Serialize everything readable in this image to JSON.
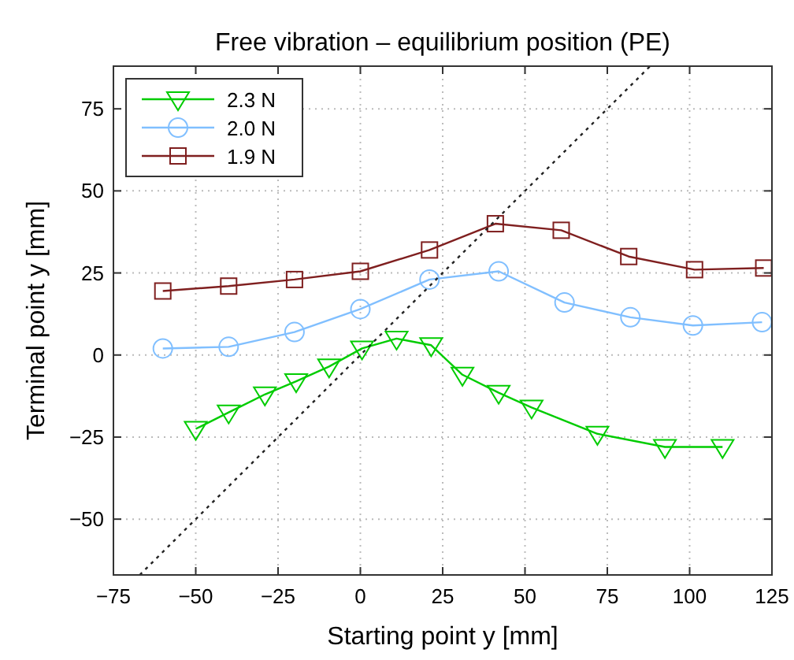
{
  "chart_data": {
    "type": "line",
    "title": "Free vibration – equilibrium position (PE)",
    "xlabel": "Starting point y [mm]",
    "ylabel": "Terminal point y [mm]",
    "xlim": [
      -75,
      125
    ],
    "ylim": [
      -67,
      88
    ],
    "xticks": [
      -75,
      -50,
      -25,
      0,
      25,
      50,
      75,
      100,
      125
    ],
    "yticks": [
      -50,
      -25,
      0,
      25,
      50,
      75
    ],
    "grid": true,
    "legend": "top left",
    "series": [
      {
        "name": "2.3 N",
        "color": "#00cc00",
        "marker": "triangle",
        "x": [
          -50,
          -40,
          -29,
          -19.5,
          -9.5,
          0.5,
          11,
          21.5,
          31,
          42,
          52,
          72,
          92.5,
          110
        ],
        "values": [
          -22.5,
          -17.5,
          -12,
          -8,
          -3.5,
          2,
          5,
          3,
          -6,
          -11.5,
          -16,
          -24,
          -28,
          -28
        ]
      },
      {
        "name": "2.0 N",
        "color": "#80bfff",
        "marker": "circle",
        "x": [
          -60,
          -40,
          -20,
          0,
          21,
          42,
          62,
          82,
          101,
          122
        ],
        "values": [
          2,
          2.5,
          7,
          14,
          23,
          25.5,
          16,
          11.5,
          9,
          10
        ]
      },
      {
        "name": "1.9 N",
        "color": "#7f1f1f",
        "marker": "square",
        "x": [
          -60,
          -40,
          -20,
          0,
          21,
          41,
          61,
          81.5,
          101.5,
          122.5
        ],
        "values": [
          19.5,
          21,
          23,
          25.5,
          32,
          40,
          38,
          30,
          26,
          26.5
        ]
      },
      {
        "color": "#222222",
        "marker": "none",
        "line_style": "dotted",
        "x": [
          -67,
          88
        ],
        "values": [
          -67,
          88
        ]
      }
    ]
  }
}
